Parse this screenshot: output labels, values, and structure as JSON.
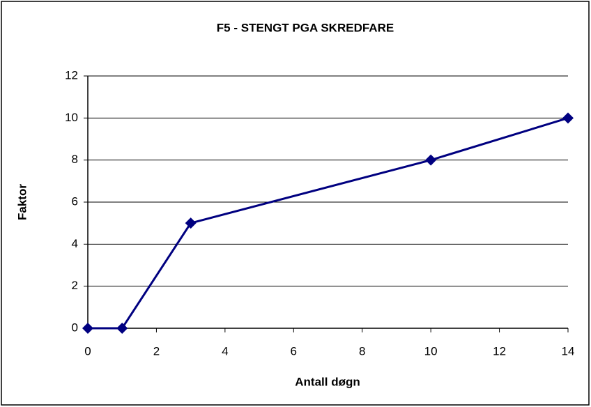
{
  "chart_data": {
    "type": "line",
    "title": "F5 - STENGT PGA SKREDFARE",
    "xlabel": "Antall døgn",
    "ylabel": "Faktor",
    "x": [
      0,
      1,
      3,
      10,
      14
    ],
    "series": [
      {
        "name": "Faktor",
        "color": "#000080",
        "values": [
          0,
          0,
          5,
          8,
          10
        ]
      }
    ],
    "xlim": [
      0,
      14
    ],
    "xticks": [
      0,
      2,
      4,
      6,
      8,
      10,
      12,
      14
    ],
    "ylim": [
      0,
      12
    ],
    "yticks": [
      0,
      2,
      4,
      6,
      8,
      10,
      12
    ],
    "grid": true
  }
}
